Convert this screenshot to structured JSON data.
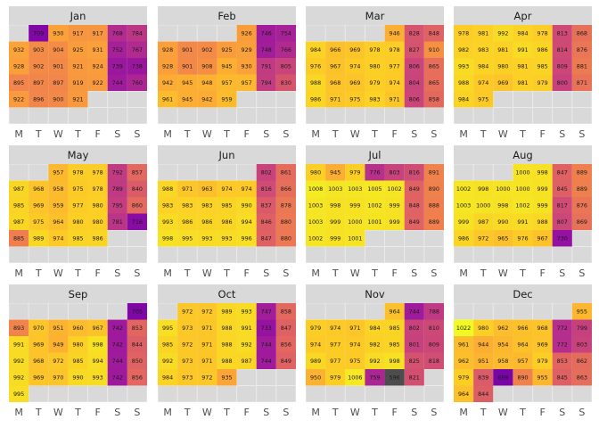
{
  "chart_data": {
    "type": "heatmap",
    "layout": "calendar grid, 3 rows x 4 columns of months",
    "weekday_labels": [
      "M",
      "T",
      "W",
      "T",
      "F",
      "S",
      "S"
    ],
    "value_min": 596,
    "value_max": 1022,
    "months": [
      {
        "name": "Jan",
        "start_weekday": 1,
        "values": [
          709,
          930,
          917,
          917,
          768,
          784,
          932,
          903,
          904,
          925,
          931,
          752,
          767,
          928,
          902,
          901,
          921,
          924,
          739,
          738,
          895,
          897,
          897,
          919,
          922,
          744,
          760,
          922,
          896,
          900,
          921
        ]
      },
      {
        "name": "Feb",
        "start_weekday": 4,
        "values": [
          926,
          746,
          754,
          928,
          901,
          902,
          925,
          929,
          748,
          766,
          928,
          901,
          908,
          945,
          930,
          791,
          805,
          942,
          945,
          948,
          957,
          957,
          794,
          830,
          961,
          945,
          942,
          959
        ]
      },
      {
        "name": "Mar",
        "start_weekday": 4,
        "values": [
          946,
          828,
          848,
          984,
          966,
          969,
          978,
          978,
          827,
          910,
          976,
          967,
          974,
          980,
          977,
          806,
          865,
          988,
          968,
          969,
          979,
          974,
          804,
          865,
          986,
          971,
          975,
          983,
          971,
          806,
          858
        ]
      },
      {
        "name": "Apr",
        "start_weekday": 0,
        "values": [
          978,
          981,
          992,
          984,
          978,
          813,
          868,
          982,
          983,
          981,
          991,
          986,
          814,
          876,
          993,
          984,
          980,
          981,
          985,
          809,
          881,
          988,
          974,
          969,
          981,
          979,
          800,
          871,
          984,
          975
        ]
      },
      {
        "name": "May",
        "start_weekday": 2,
        "values": [
          957,
          978,
          978,
          792,
          857,
          987,
          968,
          958,
          975,
          978,
          789,
          840,
          985,
          969,
          959,
          977,
          980,
          795,
          860,
          987,
          975,
          964,
          980,
          980,
          781,
          716,
          885,
          989,
          974,
          985,
          986
        ]
      },
      {
        "name": "Jun",
        "start_weekday": 5,
        "values": [
          802,
          861,
          988,
          971,
          963,
          974,
          974,
          816,
          866,
          983,
          983,
          983,
          985,
          990,
          837,
          878,
          993,
          986,
          986,
          986,
          994,
          846,
          880,
          998,
          995,
          993,
          993,
          996,
          847,
          880
        ]
      },
      {
        "name": "Jul",
        "start_weekday": 0,
        "values": [
          980,
          945,
          979,
          776,
          803,
          816,
          891,
          1008,
          1003,
          1003,
          1005,
          1002,
          849,
          890,
          1003,
          998,
          999,
          1002,
          999,
          848,
          888,
          1003,
          999,
          1000,
          1001,
          999,
          849,
          889,
          1002,
          999,
          1001
        ]
      },
      {
        "name": "Aug",
        "start_weekday": 3,
        "values": [
          1000,
          998,
          847,
          889,
          1002,
          998,
          1000,
          1000,
          999,
          845,
          889,
          1003,
          1000,
          998,
          1002,
          999,
          817,
          876,
          999,
          987,
          990,
          991,
          988,
          807,
          869,
          986,
          972,
          965,
          976,
          967,
          730
        ]
      },
      {
        "name": "Sep",
        "start_weekday": 6,
        "values": [
          705,
          893,
          970,
          951,
          960,
          967,
          742,
          853,
          991,
          969,
          949,
          980,
          998,
          742,
          844,
          992,
          968,
          972,
          985,
          994,
          744,
          850,
          992,
          969,
          970,
          990,
          993,
          742,
          856,
          995
        ]
      },
      {
        "name": "Oct",
        "start_weekday": 1,
        "values": [
          972,
          972,
          989,
          993,
          747,
          858,
          995,
          973,
          971,
          988,
          991,
          733,
          847,
          985,
          972,
          971,
          988,
          992,
          744,
          856,
          992,
          973,
          971,
          988,
          987,
          744,
          849,
          984,
          973,
          972,
          935
        ]
      },
      {
        "name": "Nov",
        "start_weekday": 4,
        "values": [
          964,
          744,
          788,
          979,
          974,
          971,
          984,
          985,
          802,
          810,
          974,
          977,
          974,
          982,
          985,
          801,
          809,
          989,
          977,
          975,
          992,
          998,
          825,
          818,
          950,
          979,
          1006,
          759,
          596,
          821
        ]
      },
      {
        "name": "Dec",
        "start_weekday": 6,
        "values": [
          955,
          1022,
          980,
          962,
          966,
          968,
          772,
          799,
          961,
          944,
          954,
          964,
          969,
          772,
          803,
          962,
          951,
          958,
          957,
          979,
          853,
          862,
          979,
          839,
          699,
          890,
          955,
          845,
          863,
          964,
          844
        ]
      }
    ],
    "colors": {
      "panel_background": "#ebebeb",
      "empty_cell": "#d9d9d9",
      "strip_background": "#d9d9d9",
      "palette": [
        "#0d0887",
        "#3d0598",
        "#6a00a8",
        "#8f0da4",
        "#b12a90",
        "#cc4778",
        "#e16462",
        "#f1844b",
        "#fca636",
        "#fcce25",
        "#f0f921"
      ],
      "missing_dark": "#4d4d4d"
    }
  }
}
